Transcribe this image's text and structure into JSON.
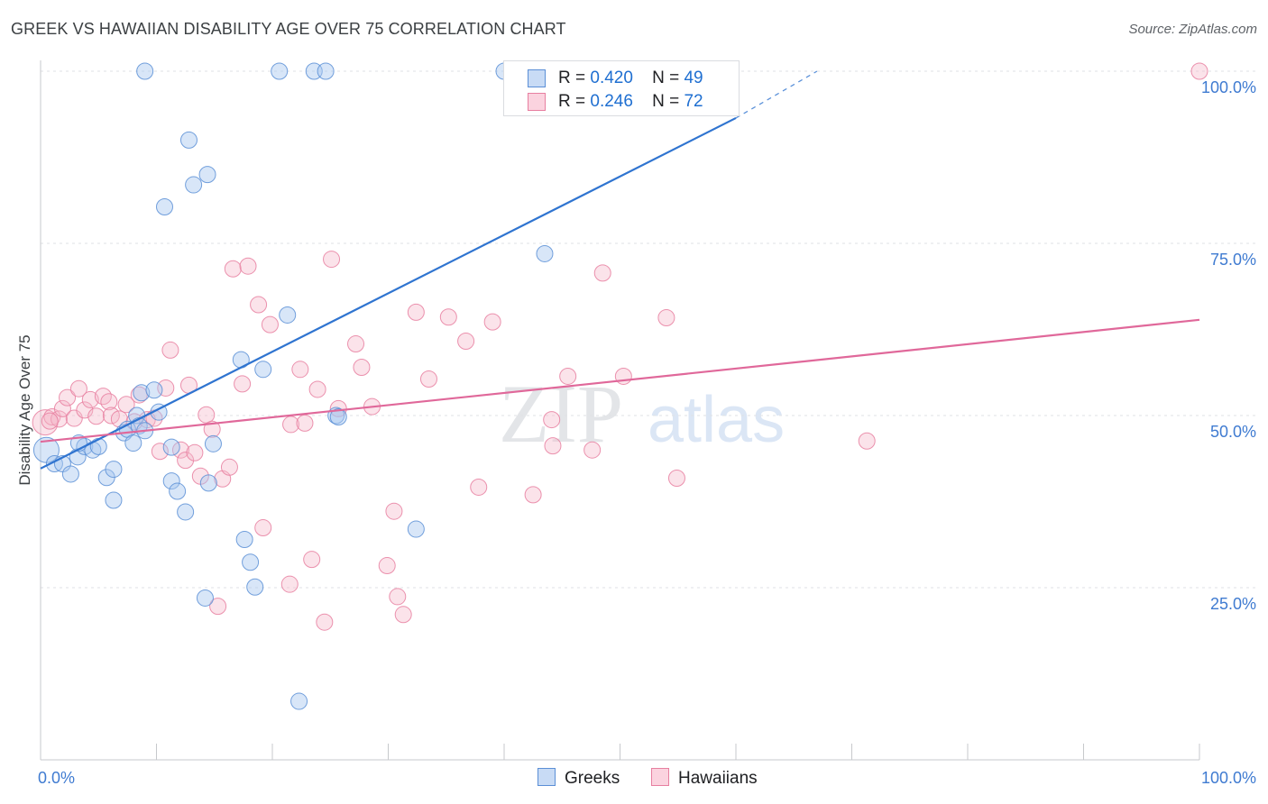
{
  "title": "GREEK VS HAWAIIAN DISABILITY AGE OVER 75 CORRELATION CHART",
  "source": "Source: ZipAtlas.com",
  "watermark": {
    "zip": "ZIP",
    "atlas": "atlas"
  },
  "legend_top": {
    "row1": {
      "r_label": "R =",
      "r_value": "0.420",
      "n_label": "N =",
      "n_value": "49"
    },
    "row2": {
      "r_label": "R =",
      "r_value": "0.246",
      "n_label": "N =",
      "n_value": "72"
    }
  },
  "bottom_legend": {
    "greeks": "Greeks",
    "hawaiians": "Hawaiians"
  },
  "colors": {
    "greeks_fill": "#a9c7ef",
    "greeks_stroke": "#5b8fd6",
    "greeks_line": "#2f74d0",
    "hawaiians_fill": "#f6b8cb",
    "hawaiians_stroke": "#e77fa0",
    "hawaiians_line": "#e0689a",
    "axis_label": "#3f7bd1",
    "grid": "#dfe1e5"
  },
  "chart_data": {
    "type": "scatter",
    "title": "GREEK VS HAWAIIAN DISABILITY AGE OVER 75 CORRELATION CHART",
    "xlabel": "",
    "ylabel": "Disability Age Over 75",
    "xlim": [
      0,
      100
    ],
    "ylim": [
      0,
      100
    ],
    "x_tick_labels": [
      "0.0%",
      "100.0%"
    ],
    "y_tick_labels": [
      "25.0%",
      "50.0%",
      "75.0%",
      "100.0%"
    ],
    "y_ticks": [
      25,
      50,
      75,
      100
    ],
    "grid": "horizontal dashed",
    "legend": "top-center and bottom",
    "series": [
      {
        "name": "Greeks",
        "r": 0.42,
        "n": 49,
        "trend": {
          "x0": 0,
          "y0": 42.3,
          "x1": 60,
          "y1": 93.2,
          "dashed_to_x": 67,
          "dashed_to_y": 100
        },
        "points": [
          [
            0.5,
            45,
            14
          ],
          [
            1.2,
            43,
            9
          ],
          [
            1.9,
            43,
            9
          ],
          [
            2.6,
            41.5,
            9
          ],
          [
            3.2,
            44,
            9
          ],
          [
            3.8,
            45.5,
            9
          ],
          [
            4.5,
            45,
            9
          ],
          [
            5.0,
            45.5,
            9
          ],
          [
            5.7,
            41,
            9
          ],
          [
            6.3,
            42.2,
            9
          ],
          [
            6.3,
            37.7,
            9
          ],
          [
            7.2,
            47.5,
            9
          ],
          [
            7.5,
            48,
            9
          ],
          [
            8.0,
            46,
            9
          ],
          [
            8.3,
            50,
            9
          ],
          [
            8.5,
            48.5,
            9
          ],
          [
            9.0,
            47.8,
            9
          ],
          [
            8.7,
            53.3,
            9
          ],
          [
            9.8,
            53.7,
            9
          ],
          [
            10.2,
            50.5,
            9
          ],
          [
            11.3,
            45.4,
            9
          ],
          [
            11.3,
            40.5,
            9
          ],
          [
            11.8,
            39,
            9
          ],
          [
            12.5,
            36,
            9
          ],
          [
            14.5,
            40.2,
            9
          ],
          [
            14.2,
            23.5,
            9
          ],
          [
            14.9,
            45.9,
            9
          ],
          [
            17.3,
            58.1,
            9
          ],
          [
            17.6,
            32,
            9
          ],
          [
            18.1,
            28.7,
            9
          ],
          [
            18.5,
            25.1,
            9
          ],
          [
            19.2,
            56.7,
            9
          ],
          [
            21.3,
            64.6,
            9
          ],
          [
            22.3,
            8.5,
            9
          ],
          [
            25.5,
            50,
            9
          ],
          [
            25.7,
            49.8,
            9
          ],
          [
            32.4,
            33.5,
            9
          ],
          [
            43.5,
            73.5,
            9
          ],
          [
            9.0,
            100,
            9
          ],
          [
            20.6,
            100,
            9
          ],
          [
            23.6,
            100,
            9
          ],
          [
            24.6,
            100,
            9
          ],
          [
            40.0,
            100,
            9
          ],
          [
            51.7,
            100,
            9
          ],
          [
            12.8,
            90,
            9
          ],
          [
            13.2,
            83.5,
            9
          ],
          [
            14.4,
            85,
            9
          ],
          [
            10.7,
            80.3,
            9
          ],
          [
            3.3,
            46,
            9
          ]
        ]
      },
      {
        "name": "Hawaiians",
        "r": 0.246,
        "n": 72,
        "trend": {
          "x0": 0,
          "y0": 46.2,
          "x1": 100,
          "y1": 63.9
        },
        "points": [
          [
            0.4,
            49,
            14
          ],
          [
            1.0,
            49.8,
            9
          ],
          [
            1.6,
            49.5,
            9
          ],
          [
            1.9,
            51,
            9
          ],
          [
            2.3,
            52.6,
            9
          ],
          [
            2.9,
            49.6,
            9
          ],
          [
            3.3,
            53.9,
            9
          ],
          [
            3.8,
            50.8,
            9
          ],
          [
            4.3,
            52.3,
            9
          ],
          [
            4.8,
            49.9,
            9
          ],
          [
            5.4,
            52.8,
            9
          ],
          [
            5.9,
            52,
            9
          ],
          [
            6.1,
            50,
            9
          ],
          [
            6.8,
            49.5,
            9
          ],
          [
            7.4,
            51.6,
            9
          ],
          [
            8.1,
            49.1,
            9
          ],
          [
            8.5,
            53,
            9
          ],
          [
            9.2,
            49.4,
            9
          ],
          [
            9.8,
            49.6,
            9
          ],
          [
            10.3,
            44.8,
            9
          ],
          [
            10.8,
            54,
            9
          ],
          [
            11.2,
            59.5,
            9
          ],
          [
            12.1,
            45,
            9
          ],
          [
            12.5,
            43.5,
            9
          ],
          [
            12.8,
            54.4,
            9
          ],
          [
            13.3,
            44.6,
            9
          ],
          [
            13.8,
            41.2,
            9
          ],
          [
            14.3,
            50.1,
            9
          ],
          [
            14.8,
            48,
            9
          ],
          [
            15.3,
            22.3,
            9
          ],
          [
            15.7,
            40.8,
            9
          ],
          [
            16.3,
            42.5,
            9
          ],
          [
            16.6,
            71.3,
            9
          ],
          [
            17.4,
            54.6,
            9
          ],
          [
            17.9,
            71.7,
            9
          ],
          [
            18.8,
            66.1,
            9
          ],
          [
            19.2,
            33.7,
            9
          ],
          [
            19.8,
            63.2,
            9
          ],
          [
            21.5,
            25.5,
            9
          ],
          [
            21.6,
            48.7,
            9
          ],
          [
            22.4,
            56.7,
            9
          ],
          [
            22.8,
            48.9,
            9
          ],
          [
            23.4,
            29.1,
            9
          ],
          [
            23.9,
            53.8,
            9
          ],
          [
            24.5,
            20,
            9
          ],
          [
            25.1,
            72.7,
            9
          ],
          [
            25.7,
            51,
            9
          ],
          [
            27.2,
            60.4,
            9
          ],
          [
            27.7,
            57,
            9
          ],
          [
            28.6,
            51.3,
            9
          ],
          [
            29.9,
            28.2,
            9
          ],
          [
            30.5,
            36.1,
            9
          ],
          [
            30.8,
            23.7,
            9
          ],
          [
            31.3,
            21.1,
            9
          ],
          [
            32.4,
            65,
            9
          ],
          [
            33.5,
            55.3,
            9
          ],
          [
            35.2,
            64.3,
            9
          ],
          [
            36.7,
            60.8,
            9
          ],
          [
            37.8,
            39.6,
            9
          ],
          [
            39.0,
            63.6,
            9
          ],
          [
            42.5,
            38.5,
            9
          ],
          [
            44.1,
            49.4,
            9
          ],
          [
            44.2,
            45.6,
            9
          ],
          [
            45.5,
            55.7,
            9
          ],
          [
            47.6,
            45,
            9
          ],
          [
            48.5,
            70.7,
            9
          ],
          [
            50.3,
            55.7,
            9
          ],
          [
            54.0,
            64.2,
            9
          ],
          [
            54.9,
            40.9,
            9
          ],
          [
            71.3,
            46.3,
            9
          ],
          [
            100.0,
            100,
            9
          ],
          [
            0.8,
            49.2,
            9
          ]
        ]
      }
    ]
  }
}
